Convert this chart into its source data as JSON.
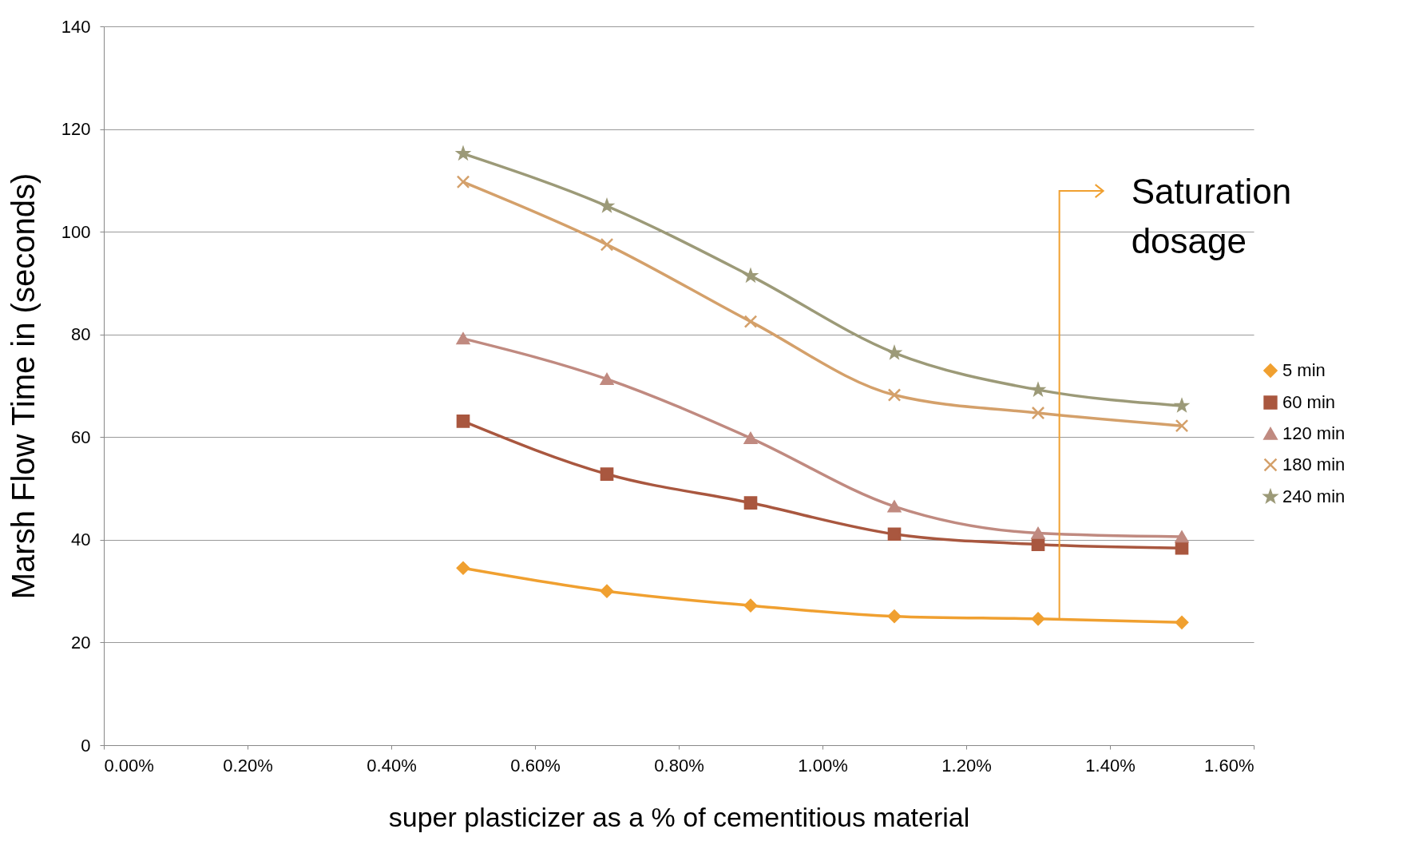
{
  "chart_data": {
    "type": "line",
    "xlabel": "super plasticizer as a % of cementitious material",
    "ylabel": "Marsh Flow Time in (seconds)",
    "x": [
      0.5,
      0.7,
      0.9,
      1.1,
      1.3,
      1.5
    ],
    "xlim": [
      0,
      1.6
    ],
    "xticks": [
      {
        "value": 0,
        "label": "0.00%"
      },
      {
        "value": 0.2,
        "label": "0.20%"
      },
      {
        "value": 0.4,
        "label": "0.40%"
      },
      {
        "value": 0.6,
        "label": "0.60%"
      },
      {
        "value": 0.8,
        "label": "0.80%"
      },
      {
        "value": 1.0,
        "label": "1.00%"
      },
      {
        "value": 1.2,
        "label": "1.20%"
      },
      {
        "value": 1.4,
        "label": "1.40%"
      },
      {
        "value": 1.6,
        "label": "1.60%"
      }
    ],
    "ylim": [
      0,
      140
    ],
    "yticks": [
      0,
      20,
      40,
      60,
      80,
      100,
      120,
      140
    ],
    "grid": "y",
    "legend": "right",
    "series": [
      {
        "name": "5 min",
        "color": "#f0a030",
        "marker": "diamond",
        "values": [
          34.5,
          30.0,
          27.2,
          25.1,
          24.6,
          23.9
        ]
      },
      {
        "name": "60 min",
        "color": "#a9573f",
        "marker": "square",
        "values": [
          63.1,
          52.8,
          47.2,
          41.1,
          39.1,
          38.4
        ]
      },
      {
        "name": "120 min",
        "color": "#c08a80",
        "marker": "triangle",
        "values": [
          79.2,
          71.3,
          59.8,
          46.5,
          41.3,
          40.6
        ]
      },
      {
        "name": "180 min",
        "color": "#d4a06a",
        "marker": "cross",
        "values": [
          109.7,
          97.5,
          82.5,
          68.2,
          64.7,
          62.2
        ]
      },
      {
        "name": "240 min",
        "color": "#9c9a78",
        "marker": "star",
        "values": [
          115.2,
          105.0,
          91.4,
          76.4,
          69.2,
          66.1
        ]
      }
    ],
    "annotations": [
      "Saturation dosage"
    ]
  }
}
